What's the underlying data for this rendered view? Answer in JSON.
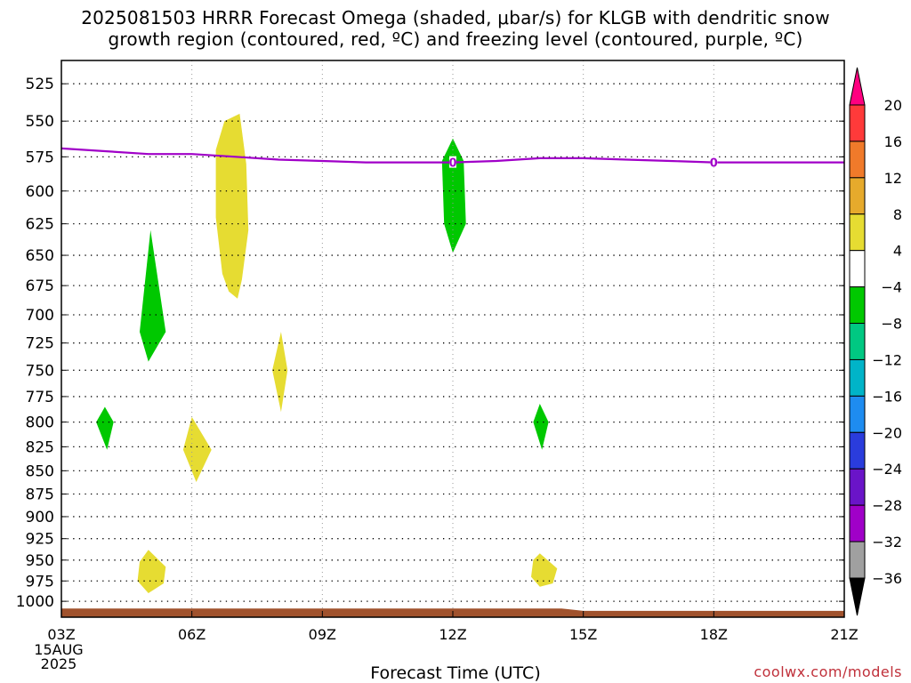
{
  "title": {
    "line1": "2025081503 HRRR Forecast Omega (shaded, μbar/s) for KLGB with dendritic snow",
    "line2": "growth region (contoured, red, ºC) and freezing level (contoured, purple, ºC)"
  },
  "credit": "coolwx.com/models",
  "chart_data": {
    "type": "time-height cross section",
    "xlabel": "Forecast Time (UTC)",
    "x_ticks": [
      "03Z",
      "06Z",
      "09Z",
      "12Z",
      "15Z",
      "18Z",
      "21Z"
    ],
    "x_tick_hours": [
      3,
      6,
      9,
      12,
      15,
      18,
      21
    ],
    "x_date_label": [
      "15AUG",
      "2025"
    ],
    "xlim": [
      3,
      21
    ],
    "ylabel": "",
    "y_levels": [
      525,
      550,
      575,
      600,
      625,
      650,
      675,
      700,
      725,
      750,
      775,
      800,
      825,
      850,
      875,
      900,
      925,
      950,
      975,
      1000
    ],
    "ylim": [
      510,
      1020
    ],
    "y_scale": "log",
    "grid": true,
    "colorbar": {
      "labels": [
        20,
        16,
        12,
        8,
        4,
        -4,
        -8,
        -12,
        -16,
        -20,
        -24,
        -28,
        -32,
        -36
      ],
      "bands": [
        "#ff0080",
        "#ff3a3a",
        "#f07a2a",
        "#e6aa2c",
        "#e6dc32",
        "#ffffff",
        "#00c800",
        "#00c882",
        "#00b4c8",
        "#1e8cf0",
        "#2a3cdc",
        "#6a14c8",
        "#a000c8",
        "#a0a0a0",
        "#000000"
      ]
    },
    "freezing_level": {
      "label": "0",
      "color": "#a000c8",
      "points": [
        [
          3,
          569
        ],
        [
          4,
          571
        ],
        [
          5,
          573
        ],
        [
          6,
          573
        ],
        [
          7,
          575
        ],
        [
          8,
          577
        ],
        [
          9,
          578
        ],
        [
          10,
          579
        ],
        [
          11,
          579
        ],
        [
          12,
          579
        ],
        [
          13,
          578
        ],
        [
          14,
          576
        ],
        [
          15,
          576
        ],
        [
          16,
          577
        ],
        [
          17,
          578
        ],
        [
          18,
          579
        ],
        [
          19,
          579
        ],
        [
          20,
          579
        ],
        [
          21,
          579
        ]
      ],
      "label_positions": [
        [
          12,
          579
        ],
        [
          18,
          579
        ]
      ]
    },
    "omega_regions": [
      {
        "value": 6,
        "color": "#e6dc32",
        "points": [
          [
            6.55,
            570
          ],
          [
            6.75,
            550
          ],
          [
            7.1,
            545
          ],
          [
            7.25,
            580
          ],
          [
            7.3,
            630
          ],
          [
            7.15,
            670
          ],
          [
            7.05,
            686
          ],
          [
            6.85,
            680
          ],
          [
            6.7,
            665
          ],
          [
            6.55,
            620
          ]
        ]
      },
      {
        "value": 6,
        "color": "#e6dc32",
        "points": [
          [
            8.05,
            715
          ],
          [
            8.2,
            750
          ],
          [
            8.05,
            790
          ],
          [
            7.85,
            750
          ]
        ]
      },
      {
        "value": 6,
        "color": "#e6dc32",
        "points": [
          [
            6.0,
            795
          ],
          [
            6.45,
            828
          ],
          [
            6.1,
            862
          ],
          [
            5.8,
            828
          ]
        ]
      },
      {
        "value": 6,
        "color": "#e6dc32",
        "points": [
          [
            5.0,
            938
          ],
          [
            5.4,
            958
          ],
          [
            5.35,
            978
          ],
          [
            5.0,
            990
          ],
          [
            4.75,
            975
          ],
          [
            4.8,
            952
          ]
        ]
      },
      {
        "value": 6,
        "color": "#e6dc32",
        "points": [
          [
            14.0,
            942
          ],
          [
            14.4,
            960
          ],
          [
            14.3,
            978
          ],
          [
            14.0,
            982
          ],
          [
            13.8,
            970
          ],
          [
            13.85,
            950
          ]
        ]
      },
      {
        "value": -6,
        "color": "#00c800",
        "points": [
          [
            5.05,
            630
          ],
          [
            5.4,
            715
          ],
          [
            5.0,
            742
          ],
          [
            4.8,
            715
          ]
        ]
      },
      {
        "value": -6,
        "color": "#00c800",
        "points": [
          [
            4.0,
            785
          ],
          [
            4.2,
            800
          ],
          [
            4.05,
            828
          ],
          [
            3.8,
            800
          ]
        ]
      },
      {
        "value": -6,
        "color": "#00c800",
        "points": [
          [
            12.0,
            562
          ],
          [
            12.25,
            578
          ],
          [
            12.3,
            625
          ],
          [
            12.0,
            648
          ],
          [
            11.8,
            625
          ],
          [
            11.75,
            578
          ]
        ]
      },
      {
        "value": -6,
        "color": "#00c800",
        "points": [
          [
            14.0,
            782
          ],
          [
            14.2,
            800
          ],
          [
            14.05,
            828
          ],
          [
            13.85,
            800
          ]
        ]
      }
    ],
    "ground": {
      "color": "#a0522d",
      "points": [
        [
          3,
          1009
        ],
        [
          14.5,
          1009
        ],
        [
          15,
          1012
        ],
        [
          21,
          1012
        ]
      ]
    }
  }
}
